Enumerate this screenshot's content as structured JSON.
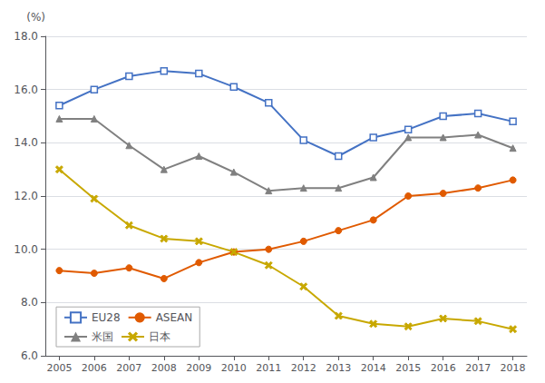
{
  "chart_data": {
    "type": "line",
    "ylabel": "(%)",
    "x": [
      2005,
      2006,
      2007,
      2008,
      2009,
      2010,
      2011,
      2012,
      2013,
      2014,
      2015,
      2016,
      2017,
      2018
    ],
    "xlim": [
      2004.6,
      2018.4
    ],
    "xticks": [
      2005,
      2006,
      2007,
      2008,
      2009,
      2010,
      2011,
      2012,
      2013,
      2014,
      2015,
      2016,
      2017,
      2018
    ],
    "ylim": [
      6.0,
      18.0
    ],
    "yticks": [
      {
        "value": 6.0,
        "label": "6.0"
      },
      {
        "value": 8.0,
        "label": "8.0"
      },
      {
        "value": 10.0,
        "label": "10.0"
      },
      {
        "value": 12.0,
        "label": "12.0"
      },
      {
        "value": 14.0,
        "label": "14.0"
      },
      {
        "value": 16.0,
        "label": "16.0"
      },
      {
        "value": 18.0,
        "label": "18.0"
      }
    ],
    "grid": true,
    "legend": "lower left",
    "series": [
      {
        "name": "EU28",
        "color": "#4472c4",
        "marker": "open-square",
        "values": [
          15.4,
          16.0,
          16.5,
          16.7,
          16.6,
          16.1,
          15.5,
          14.1,
          13.5,
          14.2,
          14.5,
          15.0,
          15.1,
          14.8
        ]
      },
      {
        "name": "ASEAN",
        "color": "#e05a00",
        "marker": "circle",
        "values": [
          9.2,
          9.1,
          9.3,
          8.9,
          9.5,
          9.9,
          10.0,
          10.3,
          10.7,
          11.1,
          12.0,
          12.1,
          12.3,
          12.6
        ]
      },
      {
        "name": "米国",
        "color": "#808080",
        "marker": "triangle",
        "values": [
          14.9,
          14.9,
          13.9,
          13.0,
          13.5,
          12.9,
          12.2,
          12.3,
          12.3,
          12.7,
          14.2,
          14.2,
          14.3,
          13.8
        ]
      },
      {
        "name": "日本",
        "color": "#c8a800",
        "marker": "x",
        "values": [
          13.0,
          11.9,
          10.9,
          10.4,
          10.3,
          9.9,
          9.4,
          8.6,
          7.5,
          7.2,
          7.1,
          7.4,
          7.3,
          7.0
        ]
      }
    ]
  }
}
